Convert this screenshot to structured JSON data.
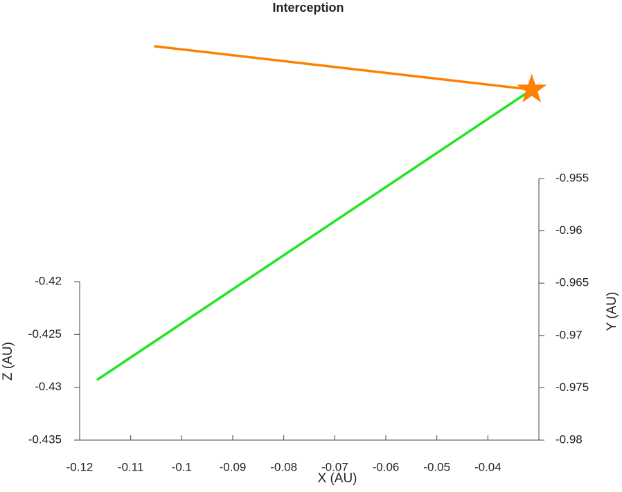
{
  "chart_data": {
    "type": "line3d",
    "title": "Interception",
    "xlabel": "X (AU)",
    "ylabel": "Y (AU)",
    "zlabel": "Z (AU)",
    "xlim": [
      -0.12,
      -0.03
    ],
    "xticks": [
      -0.12,
      -0.11,
      -0.1,
      -0.09,
      -0.08,
      -0.07,
      -0.06,
      -0.05,
      -0.04
    ],
    "ylim": [
      -0.98,
      -0.955
    ],
    "yticks": [
      -0.98,
      -0.975,
      -0.97,
      -0.965,
      -0.96,
      -0.955
    ],
    "zlim": [
      -0.435,
      -0.42
    ],
    "zticks": [
      -0.435,
      -0.43,
      -0.425,
      -0.42
    ],
    "series": [
      {
        "color": "#1ee61e",
        "x": [
          -0.1166,
          -0.0314
        ],
        "y": [
          -0.9793,
          -0.9566
        ],
        "z": [
          -0.43,
          -0.425
        ]
      },
      {
        "color": "#ff8000",
        "x": [
          -0.1054,
          -0.0314
        ],
        "y": [
          -0.9575,
          -0.9566
        ],
        "z": [
          -0.42,
          -0.425
        ],
        "end_marker": "star"
      }
    ]
  }
}
